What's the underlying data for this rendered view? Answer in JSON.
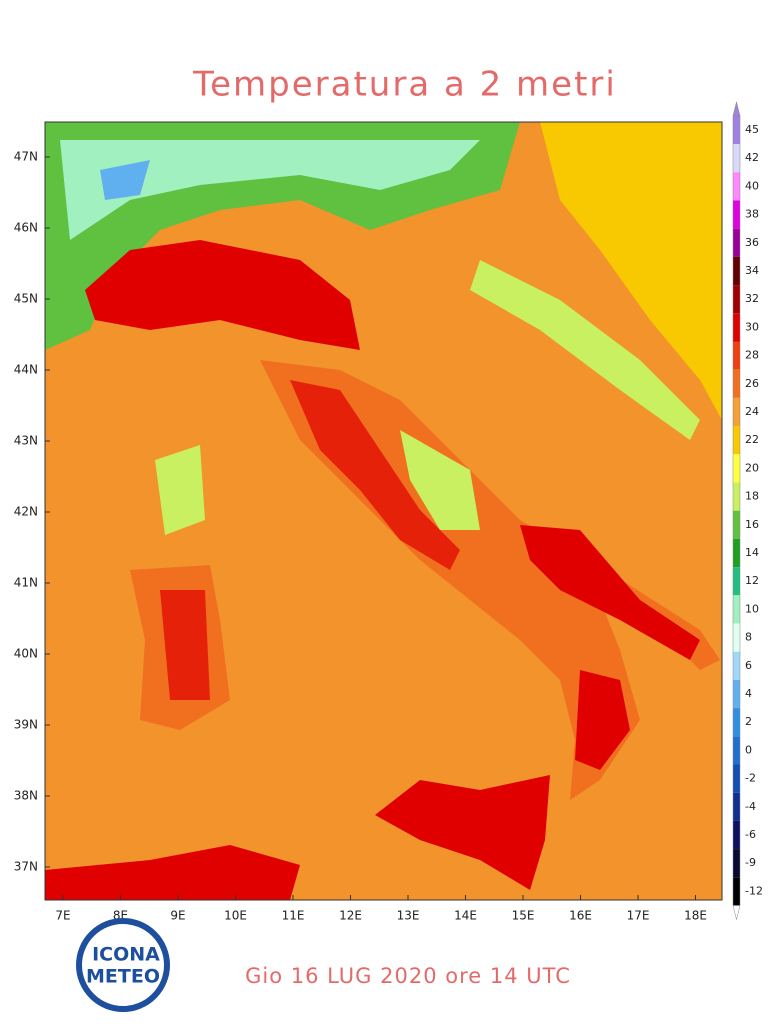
{
  "header": {
    "title": "Temperatura a 2 metri"
  },
  "map": {
    "lat_labels": [
      "47N",
      "46N",
      "45N",
      "44N",
      "43N",
      "42N",
      "41N",
      "40N",
      "39N",
      "38N",
      "37N"
    ],
    "lon_labels": [
      "7E",
      "8E",
      "9E",
      "10E",
      "11E",
      "12E",
      "13E",
      "14E",
      "15E",
      "16E",
      "17E",
      "18E"
    ]
  },
  "colorbar": {
    "items": [
      {
        "label": 45,
        "color": "#a080e0"
      },
      {
        "label": 42,
        "color": "#d8d8f8"
      },
      {
        "label": 40,
        "color": "#ff88ff"
      },
      {
        "label": 38,
        "color": "#e000e0"
      },
      {
        "label": 36,
        "color": "#9a009a"
      },
      {
        "label": 34,
        "color": "#600000"
      },
      {
        "label": 32,
        "color": "#a00000"
      },
      {
        "label": 30,
        "color": "#e00000"
      },
      {
        "label": 28,
        "color": "#f04010"
      },
      {
        "label": 26,
        "color": "#f07020"
      },
      {
        "label": 24,
        "color": "#f5a030"
      },
      {
        "label": 22,
        "color": "#f8c800"
      },
      {
        "label": 20,
        "color": "#ffff40"
      },
      {
        "label": 18,
        "color": "#c8f060"
      },
      {
        "label": 16,
        "color": "#60c040"
      },
      {
        "label": 14,
        "color": "#20a020"
      },
      {
        "label": 12,
        "color": "#20c080"
      },
      {
        "label": 10,
        "color": "#a0f0c0"
      },
      {
        "label": 8,
        "color": "#e0fff0"
      },
      {
        "label": 6,
        "color": "#a0d8f8"
      },
      {
        "label": 4,
        "color": "#60b0f0"
      },
      {
        "label": 2,
        "color": "#3090e0"
      },
      {
        "label": 0,
        "color": "#2070d0"
      },
      {
        "label": -2,
        "color": "#1050b0"
      },
      {
        "label": -4,
        "color": "#103090"
      },
      {
        "label": -6,
        "color": "#101060"
      },
      {
        "label": -9,
        "color": "#080830"
      },
      {
        "label": -12,
        "color": "#000000"
      }
    ]
  },
  "footer": {
    "date": "Gio 16 LUG 2020 ore 14 UTC"
  },
  "logo": {
    "line1": "ICONA",
    "line2": "METEO"
  }
}
